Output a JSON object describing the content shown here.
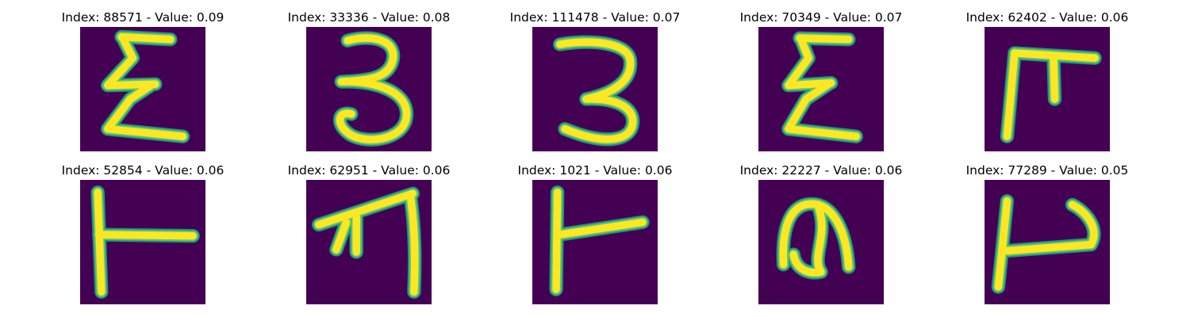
{
  "colors": {
    "background": "#440154",
    "stroke_core": "#fde725",
    "stroke_mid": "#5ec962",
    "stroke_edge": "#21918c",
    "page": "#ffffff"
  },
  "samples": [
    {
      "title": "Index: 88571 - Value: 0.09",
      "glyph": "handwritten-sigma"
    },
    {
      "title": "Index: 33336 - Value: 0.08",
      "glyph": "handwritten-three"
    },
    {
      "title": "Index: 111478 - Value: 0.07",
      "glyph": "handwritten-three"
    },
    {
      "title": "Index: 70349 - Value: 0.07",
      "glyph": "handwritten-sigma"
    },
    {
      "title": "Index: 62402 - Value: 0.06",
      "glyph": "handwritten-gate"
    },
    {
      "title": "Index: 52854 - Value: 0.06",
      "glyph": "handwritten-t-sideways"
    },
    {
      "title": "Index: 62951 - Value: 0.06",
      "glyph": "handwritten-arrow"
    },
    {
      "title": "Index: 1021 - Value: 0.06",
      "glyph": "handwritten-t-sideways"
    },
    {
      "title": "Index: 22227 - Value: 0.06",
      "glyph": "handwritten-n-blob"
    },
    {
      "title": "Index: 77289 - Value: 0.05",
      "glyph": "handwritten-hook"
    }
  ]
}
